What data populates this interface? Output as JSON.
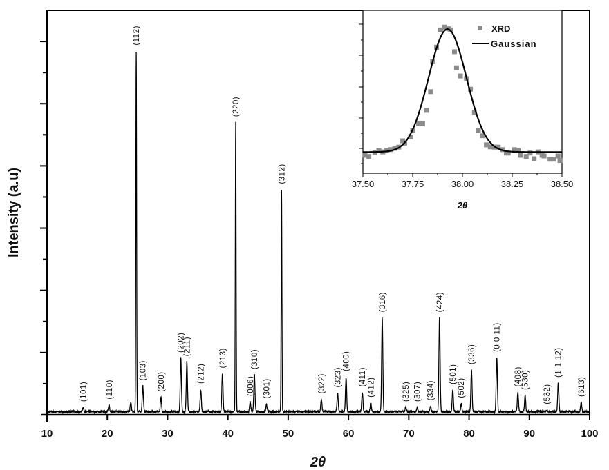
{
  "chart_data": [
    {
      "type": "line",
      "title": "",
      "xlabel": "2θ",
      "ylabel": "Intensity (a.u)",
      "xlim": [
        10,
        100
      ],
      "ylim": [
        0,
        6.5
      ],
      "xticks": [
        "10",
        "20",
        "30",
        "40",
        "50",
        "60",
        "70",
        "80",
        "90",
        "100"
      ],
      "y_tick_labels_shown": false,
      "grid": false,
      "line_color": "#000000",
      "baseline": 0.05,
      "peaks": [
        {
          "label": "(101)",
          "x": 16.0,
          "y": 0.12
        },
        {
          "label": "(110)",
          "x": 20.3,
          "y": 0.16
        },
        {
          "label": "",
          "x": 23.9,
          "y": 0.2
        },
        {
          "label": "(112)",
          "x": 24.8,
          "y": 5.85
        },
        {
          "label": "(103)",
          "x": 25.9,
          "y": 0.46
        },
        {
          "label": "(200)",
          "x": 28.9,
          "y": 0.28
        },
        {
          "label": "(202)",
          "x": 32.2,
          "y": 0.91
        },
        {
          "label": "(211)",
          "x": 33.2,
          "y": 0.85
        },
        {
          "label": "(212)",
          "x": 35.5,
          "y": 0.41
        },
        {
          "label": "(213)",
          "x": 39.1,
          "y": 0.66
        },
        {
          "label": "(220)",
          "x": 41.3,
          "y": 4.7
        },
        {
          "label": "(006)",
          "x": 43.7,
          "y": 0.21
        },
        {
          "label": "(310)",
          "x": 44.4,
          "y": 0.64
        },
        {
          "label": "(301)",
          "x": 46.4,
          "y": 0.17
        },
        {
          "label": "(312)",
          "x": 48.9,
          "y": 3.62
        },
        {
          "label": "(322)",
          "x": 55.5,
          "y": 0.25
        },
        {
          "label": "(323)",
          "x": 58.2,
          "y": 0.35
        },
        {
          "label": "(400)",
          "x": 59.6,
          "y": 0.61
        },
        {
          "label": "(411)",
          "x": 62.3,
          "y": 0.36
        },
        {
          "label": "(412)",
          "x": 63.7,
          "y": 0.19
        },
        {
          "label": "(316)",
          "x": 65.6,
          "y": 1.56
        },
        {
          "label": "(325)",
          "x": 69.5,
          "y": 0.12
        },
        {
          "label": "(307)",
          "x": 71.4,
          "y": 0.12
        },
        {
          "label": "(334)",
          "x": 73.6,
          "y": 0.14
        },
        {
          "label": "(424)",
          "x": 75.1,
          "y": 1.56
        },
        {
          "label": "(501)",
          "x": 77.3,
          "y": 0.4
        },
        {
          "label": "(502)",
          "x": 78.7,
          "y": 0.18
        },
        {
          "label": "(336)",
          "x": 80.4,
          "y": 0.72
        },
        {
          "label": "(0 0 11)",
          "x": 84.6,
          "y": 0.92
        },
        {
          "label": "(408)",
          "x": 88.1,
          "y": 0.36
        },
        {
          "label": "(530)",
          "x": 89.3,
          "y": 0.31
        },
        {
          "label": "(532)",
          "x": 92.9,
          "y": 0.08
        },
        {
          "label": "(1 1 12)",
          "x": 94.8,
          "y": 0.51
        },
        {
          "label": "(613)",
          "x": 98.6,
          "y": 0.2
        }
      ]
    },
    {
      "type": "scatter",
      "title": "",
      "xlabel": "2θ",
      "ylabel": "",
      "xlim": [
        37.5,
        38.5
      ],
      "ylim": [
        0,
        1
      ],
      "xticks": [
        "37.50",
        "37.75",
        "38.00",
        "38.25",
        "38.50"
      ],
      "y_tick_labels_shown": false,
      "legend_position": "top-right",
      "series": [
        {
          "name": "XRD",
          "type": "scatter",
          "color": "#8c8c8c",
          "x": [
            37.51,
            37.53,
            37.56,
            37.58,
            37.6,
            37.62,
            37.64,
            37.66,
            37.68,
            37.7,
            37.71,
            37.74,
            37.75,
            37.78,
            37.8,
            37.82,
            37.84,
            37.85,
            37.87,
            37.89,
            37.91,
            37.93,
            37.94,
            37.96,
            37.97,
            37.99,
            38.02,
            38.04,
            38.06,
            38.08,
            38.1,
            38.12,
            38.14,
            38.16,
            38.18,
            38.2,
            38.22,
            38.23,
            38.26,
            38.28,
            38.29,
            38.32,
            38.34,
            38.36,
            38.38,
            38.4,
            38.41,
            38.44,
            38.46,
            38.48,
            38.49
          ],
          "y": [
            0.11,
            0.103,
            0.128,
            0.139,
            0.131,
            0.139,
            0.145,
            0.153,
            0.16,
            0.199,
            0.185,
            0.223,
            0.261,
            0.304,
            0.304,
            0.386,
            0.501,
            0.685,
            0.774,
            0.88,
            0.897,
            0.887,
            0.88,
            0.746,
            0.647,
            0.597,
            0.581,
            0.516,
            0.374,
            0.261,
            0.23,
            0.174,
            0.162,
            0.16,
            0.16,
            0.145,
            0.124,
            0.124,
            0.145,
            0.139,
            0.11,
            0.103,
            0.124,
            0.089,
            0.131,
            0.11,
            0.106,
            0.086,
            0.086,
            0.106,
            0.078
          ]
        },
        {
          "name": "Gaussian",
          "type": "line",
          "color": "#000000",
          "fit": {
            "y0": 0.13,
            "xc": 37.925,
            "A": 0.755,
            "sigma": 0.095
          }
        }
      ]
    }
  ]
}
